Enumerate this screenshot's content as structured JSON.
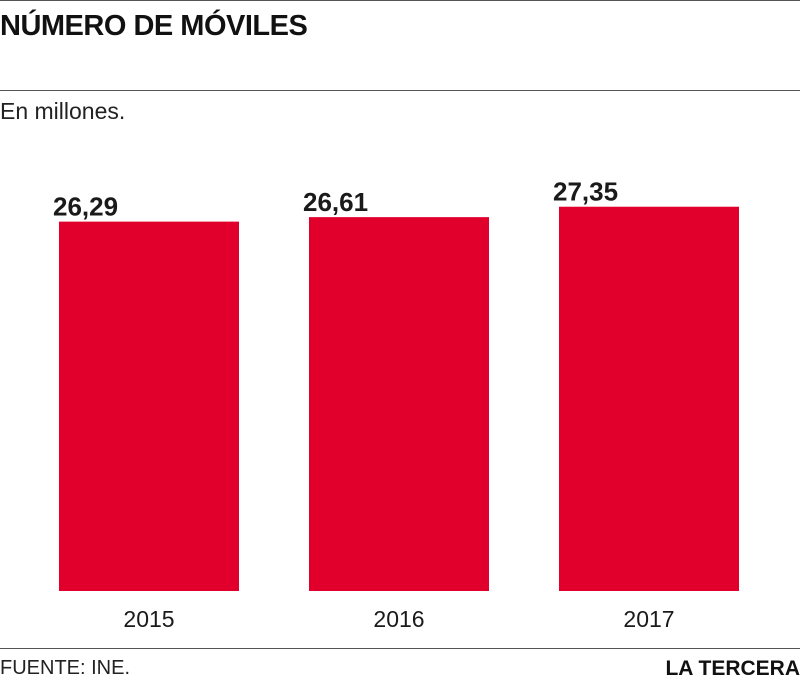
{
  "header": {
    "title": "NÚMERO DE MÓVILES",
    "subtitle": "En millones."
  },
  "footer": {
    "source": "FUENTE: INE.",
    "brand": "LA TERCERA"
  },
  "colors": {
    "bar": "#e0002b",
    "text": "#1a1a1a"
  },
  "chart_data": {
    "type": "bar",
    "categories": [
      "2015",
      "2016",
      "2017"
    ],
    "values": [
      26.29,
      26.61,
      27.35
    ],
    "value_labels": [
      "26,29",
      "26,61",
      "27,35"
    ],
    "title": "NÚMERO DE MÓVILES",
    "ylabel": "En millones.",
    "ylim": [
      0,
      30
    ],
    "grid": false,
    "legend": "none"
  }
}
